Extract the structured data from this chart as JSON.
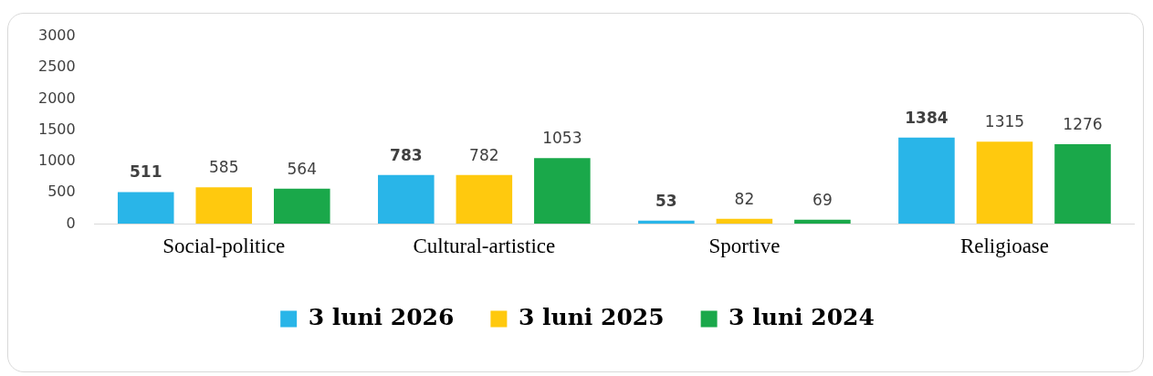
{
  "chart_data": {
    "type": "bar",
    "categories": [
      "Social-politice",
      "Cultural-artistice",
      "Sportive",
      "Religioase"
    ],
    "series": [
      {
        "name": "3 luni 2026",
        "color": "#29b5e8",
        "values": [
          511,
          783,
          53,
          1384
        ]
      },
      {
        "name": "3 luni 2025",
        "color": "#ffc90e",
        "values": [
          585,
          782,
          82,
          1315
        ]
      },
      {
        "name": "3 luni 2024",
        "color": "#1aa84a",
        "values": [
          564,
          1053,
          69,
          1276
        ]
      }
    ],
    "ylim": [
      0,
      3000
    ],
    "yticks": [
      0,
      500,
      1000,
      1500,
      2000,
      2500,
      3000
    ],
    "grid": false,
    "legend": "bottom",
    "data_labels": true
  }
}
